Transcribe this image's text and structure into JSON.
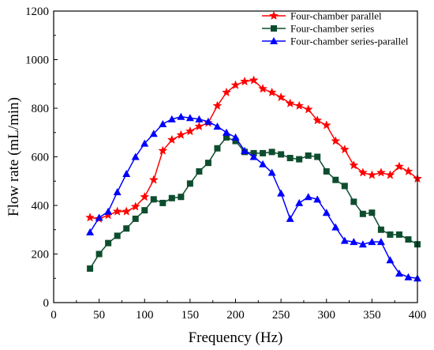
{
  "chart_data": {
    "type": "line",
    "title": "",
    "xlabel": "Frequency (Hz)",
    "ylabel": "Flow rate (mL/min)",
    "xlim": [
      0,
      400
    ],
    "ylim": [
      0,
      1200
    ],
    "xticks": [
      0,
      50,
      100,
      150,
      200,
      250,
      300,
      350,
      400
    ],
    "yticks": [
      0,
      200,
      400,
      600,
      800,
      1000,
      1200
    ],
    "grid": false,
    "legend_position": "top-right",
    "series": [
      {
        "name": "Four-chamber parallel",
        "color": "#ff0000",
        "marker": "star",
        "x": [
          40,
          50,
          60,
          70,
          80,
          90,
          100,
          110,
          120,
          130,
          140,
          150,
          160,
          170,
          180,
          190,
          200,
          210,
          220,
          230,
          240,
          250,
          260,
          270,
          280,
          290,
          300,
          310,
          320,
          330,
          340,
          350,
          360,
          370,
          380,
          390,
          400
        ],
        "y": [
          350,
          345,
          360,
          375,
          375,
          395,
          435,
          505,
          625,
          670,
          690,
          705,
          725,
          740,
          810,
          865,
          895,
          910,
          915,
          880,
          865,
          845,
          820,
          810,
          795,
          750,
          730,
          665,
          630,
          565,
          535,
          525,
          535,
          525,
          560,
          540,
          510
        ]
      },
      {
        "name": "Four-chamber series",
        "color": "#0d4d2e",
        "marker": "square",
        "x": [
          40,
          50,
          60,
          70,
          80,
          90,
          100,
          110,
          120,
          130,
          140,
          150,
          160,
          170,
          180,
          190,
          200,
          210,
          220,
          230,
          240,
          250,
          260,
          270,
          280,
          290,
          300,
          310,
          320,
          330,
          340,
          350,
          360,
          370,
          380,
          390,
          400
        ],
        "y": [
          140,
          200,
          245,
          275,
          305,
          345,
          380,
          425,
          410,
          430,
          435,
          490,
          540,
          575,
          635,
          680,
          665,
          620,
          615,
          615,
          620,
          610,
          595,
          590,
          605,
          600,
          540,
          505,
          480,
          415,
          365,
          370,
          300,
          280,
          280,
          260,
          240
        ]
      },
      {
        "name": "Four-chamber series-parallel",
        "color": "#0000ff",
        "marker": "triangle",
        "x": [
          40,
          50,
          60,
          70,
          80,
          90,
          100,
          110,
          120,
          130,
          140,
          150,
          160,
          170,
          180,
          190,
          200,
          210,
          220,
          230,
          240,
          250,
          260,
          270,
          280,
          290,
          300,
          310,
          320,
          330,
          340,
          350,
          360,
          370,
          380,
          390,
          400
        ],
        "y": [
          290,
          350,
          375,
          455,
          530,
          600,
          655,
          695,
          735,
          755,
          765,
          760,
          755,
          745,
          725,
          700,
          680,
          625,
          600,
          570,
          535,
          450,
          345,
          410,
          435,
          425,
          370,
          310,
          255,
          250,
          240,
          250,
          250,
          175,
          120,
          105,
          100
        ]
      }
    ]
  }
}
